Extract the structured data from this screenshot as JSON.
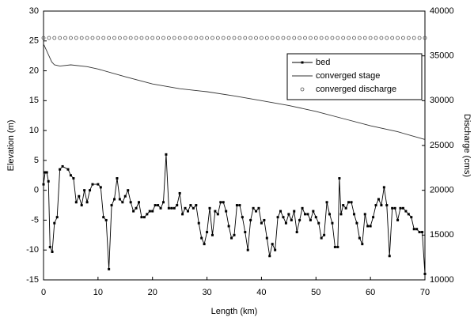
{
  "chart_data": {
    "type": "line",
    "x_label": "Length (km)",
    "y_label": "Elevation (m)",
    "y2_label": "Discharge (cms)",
    "xlim": [
      0,
      70
    ],
    "xticks": [
      0,
      10,
      20,
      30,
      40,
      50,
      60,
      70
    ],
    "ylim": [
      -15,
      30
    ],
    "yticks": [
      -15,
      -10,
      -5,
      0,
      5,
      10,
      15,
      20,
      25,
      30
    ],
    "y2lim": [
      10000,
      40000
    ],
    "y2ticks": [
      10000,
      15000,
      20000,
      25000,
      30000,
      35000,
      40000
    ],
    "grid": false,
    "legend": "upper right",
    "series": [
      {
        "name": "bed",
        "color": "#000000",
        "marker": "square",
        "line": "solid",
        "x": [
          0,
          0.3,
          0.6,
          0.9,
          1.2,
          1.6,
          2,
          2.5,
          3,
          3.5,
          4.5,
          5,
          5.5,
          6,
          6.5,
          7,
          7.5,
          8,
          8.5,
          9,
          10,
          10.5,
          11,
          11.5,
          12,
          12.5,
          13,
          13.5,
          14,
          14.5,
          15,
          15.5,
          16,
          16.5,
          17,
          17.5,
          18,
          18.5,
          19,
          19.5,
          20,
          20.5,
          21,
          21.5,
          22,
          22.5,
          23,
          23.5,
          24,
          24.5,
          25,
          25.5,
          26,
          26.5,
          27,
          27.5,
          28,
          28.5,
          29,
          29.5,
          30,
          30.5,
          31,
          31.5,
          32,
          32.5,
          33,
          33.5,
          34,
          34.5,
          35,
          35.5,
          36,
          36.5,
          37,
          37.5,
          38,
          38.5,
          39,
          39.5,
          40,
          40.5,
          41,
          41.5,
          42,
          42.5,
          43,
          43.5,
          44,
          44.5,
          45,
          45.5,
          46,
          46.5,
          47,
          47.5,
          48,
          48.5,
          49,
          49.5,
          50,
          50.5,
          51,
          51.5,
          52,
          52.5,
          53,
          53.5,
          54,
          54.3,
          54.6,
          55,
          55.5,
          56,
          56.5,
          57,
          57.5,
          58,
          58.5,
          59,
          59.5,
          60,
          60.5,
          61,
          61.5,
          62,
          62.5,
          63,
          63.5,
          64,
          64.5,
          65,
          65.5,
          66,
          66.5,
          67,
          67.5,
          68,
          68.5,
          69,
          69.5,
          70
        ],
        "values": [
          1,
          3,
          3,
          1.5,
          -9.5,
          -10.3,
          -5.5,
          -4.5,
          3.5,
          4,
          3.5,
          2.5,
          2,
          -2,
          -1,
          -2.5,
          0,
          -2,
          0,
          1,
          1,
          0.5,
          -4.5,
          -5,
          -13.2,
          -2.5,
          -1.5,
          2,
          -1.5,
          -2,
          -1,
          0,
          -2,
          -3.5,
          -3,
          -2,
          -4.5,
          -4.5,
          -4,
          -3.5,
          -3.5,
          -2.5,
          -2.5,
          -3,
          -2,
          6,
          -3,
          -3,
          -3,
          -2.5,
          -0.5,
          -4,
          -3,
          -3.5,
          -2.5,
          -3,
          -2.5,
          -5.5,
          -8,
          -9,
          -7,
          -3,
          -7.5,
          -3.5,
          -4,
          -2,
          -2,
          -3.5,
          -6,
          -8,
          -7.5,
          -2.5,
          -2.5,
          -4.5,
          -7,
          -10,
          -5,
          -3,
          -3.5,
          -3,
          -5.5,
          -5,
          -8,
          -11,
          -9,
          -10,
          -4.5,
          -3.5,
          -4.5,
          -5.5,
          -4,
          -5,
          -3.5,
          -7,
          -5,
          -3,
          -4,
          -4,
          -5,
          -3.5,
          -4.5,
          -5.5,
          -8,
          -7.5,
          -2,
          -4,
          -5.5,
          -9.5,
          -9.5,
          2,
          -4,
          -2.5,
          -3,
          -2,
          -2,
          -4,
          -5.5,
          -8,
          -9,
          -4,
          -6,
          -6,
          -4.5,
          -2.5,
          -1.5,
          -2.5,
          0.5,
          -2.5,
          -11,
          -3,
          -3,
          -5,
          -3,
          -3,
          -3.5,
          -4,
          -4.5,
          -6.5,
          -6.5,
          -7,
          -7,
          -14
        ]
      },
      {
        "name": "converged stage",
        "color": "#333333",
        "marker": null,
        "line": "solid",
        "x": [
          0,
          0.5,
          1,
          1.5,
          2,
          3,
          5,
          8,
          10,
          15,
          20,
          25,
          30,
          35,
          40,
          45,
          50,
          55,
          60,
          65,
          70
        ],
        "values": [
          24.5,
          23.5,
          22.5,
          21.5,
          21,
          20.8,
          21,
          20.7,
          20.3,
          19,
          17.8,
          17,
          16.5,
          15.8,
          15,
          14.2,
          13.2,
          12,
          10.8,
          9.8,
          8.5
        ]
      },
      {
        "name": "converged discharge",
        "color": "#555555",
        "marker": "circle",
        "line": null,
        "axis": "y2",
        "x": [
          0,
          1,
          2,
          3,
          4,
          5,
          6,
          7,
          8,
          9,
          10,
          11,
          12,
          13,
          14,
          15,
          16,
          17,
          18,
          19,
          20,
          21,
          22,
          23,
          24,
          25,
          26,
          27,
          28,
          29,
          30,
          31,
          32,
          33,
          34,
          35,
          36,
          37,
          38,
          39,
          40,
          41,
          42,
          43,
          44,
          45,
          46,
          47,
          48,
          49,
          50,
          51,
          52,
          53,
          54,
          55,
          56,
          57,
          58,
          59,
          60,
          61,
          62,
          63,
          64,
          65,
          66,
          67,
          68,
          69,
          70
        ],
        "values": [
          37000,
          37000,
          37000,
          37000,
          37000,
          37000,
          37000,
          37000,
          37000,
          37000,
          37000,
          37000,
          37000,
          37000,
          37000,
          37000,
          37000,
          37000,
          37000,
          37000,
          37000,
          37000,
          37000,
          37000,
          37000,
          37000,
          37000,
          37000,
          37000,
          37000,
          37000,
          37000,
          37000,
          37000,
          37000,
          37000,
          37000,
          37000,
          37000,
          37000,
          37000,
          37000,
          37000,
          37000,
          37000,
          37000,
          37000,
          37000,
          37000,
          37000,
          37000,
          37000,
          37000,
          37000,
          37000,
          37000,
          37000,
          37000,
          37000,
          37000,
          37000,
          37000,
          37000,
          37000,
          37000,
          37000,
          37000,
          37000,
          37000,
          37000,
          37000
        ]
      }
    ]
  }
}
